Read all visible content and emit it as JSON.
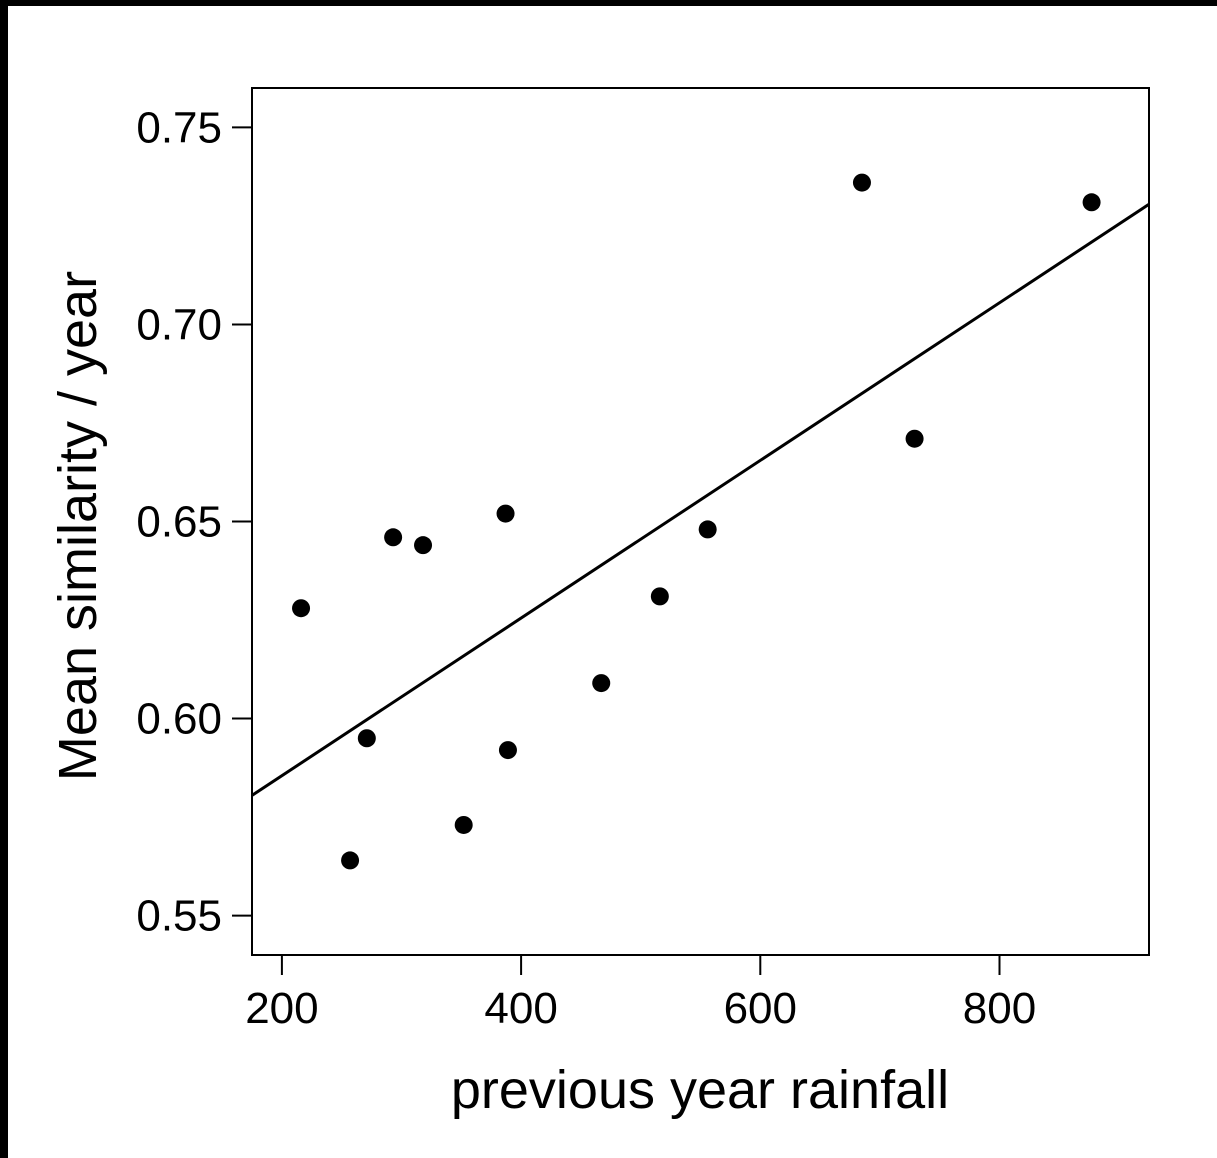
{
  "chart_data": {
    "type": "scatter",
    "title": "",
    "xlabel": "previous year rainfall",
    "ylabel": "Mean similarity / year",
    "xlim": [
      175,
      925
    ],
    "ylim": [
      0.54,
      0.76
    ],
    "x_ticks": [
      200,
      400,
      600,
      800
    ],
    "x_tick_labels": [
      "200",
      "400",
      "600",
      "800"
    ],
    "y_ticks": [
      0.55,
      0.6,
      0.65,
      0.7,
      0.75
    ],
    "y_tick_labels": [
      "0.55",
      "0.60",
      "0.65",
      "0.70",
      "0.75"
    ],
    "grid": false,
    "legend": "none",
    "point_color": "#000000",
    "points": [
      {
        "x": 216,
        "y": 0.628
      },
      {
        "x": 257,
        "y": 0.564
      },
      {
        "x": 271,
        "y": 0.595
      },
      {
        "x": 293,
        "y": 0.646
      },
      {
        "x": 318,
        "y": 0.644
      },
      {
        "x": 352,
        "y": 0.573
      },
      {
        "x": 387,
        "y": 0.652
      },
      {
        "x": 389,
        "y": 0.592
      },
      {
        "x": 467,
        "y": 0.609
      },
      {
        "x": 516,
        "y": 0.631
      },
      {
        "x": 556,
        "y": 0.648
      },
      {
        "x": 685,
        "y": 0.736
      },
      {
        "x": 729,
        "y": 0.671
      },
      {
        "x": 877,
        "y": 0.731
      }
    ],
    "trend_line": {
      "x": [
        175,
        925
      ],
      "y": [
        0.5805,
        0.7305
      ]
    }
  }
}
